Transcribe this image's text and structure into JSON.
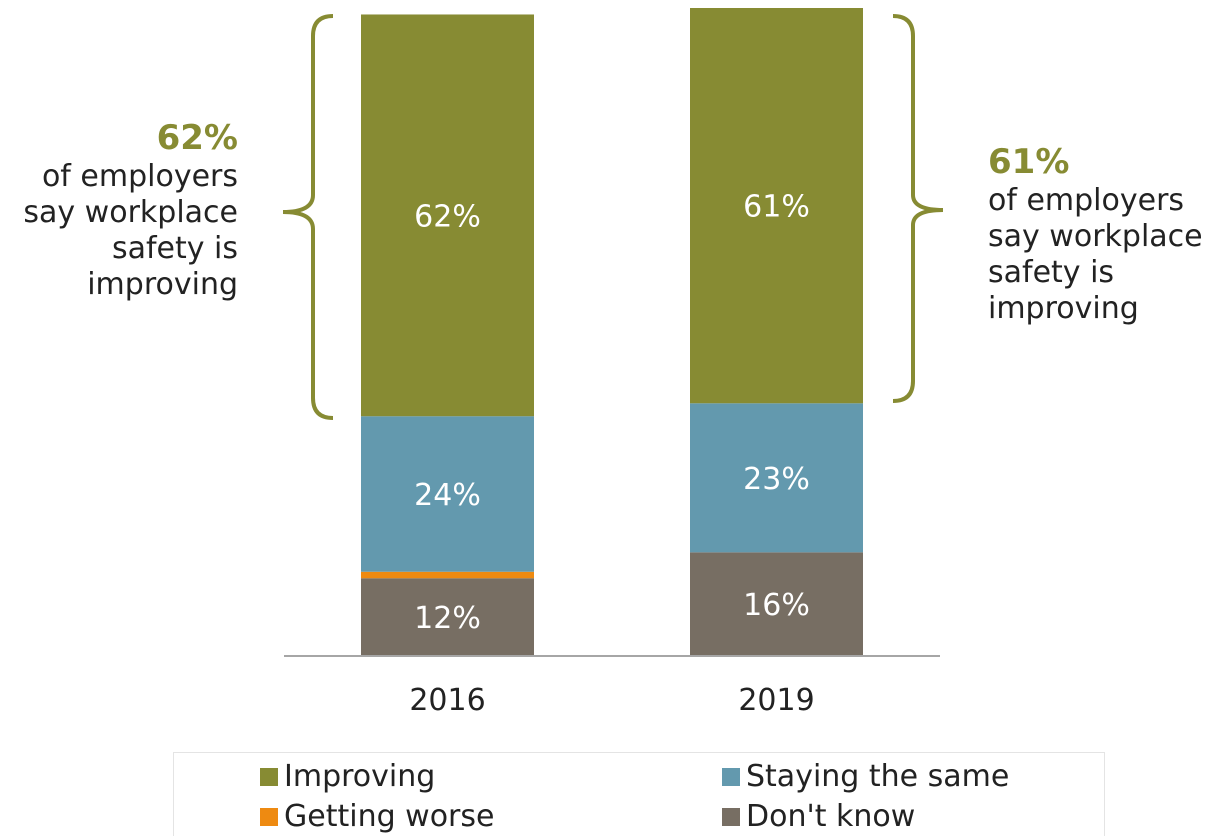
{
  "chart_data": {
    "type": "bar",
    "stacked": true,
    "categories": [
      "2016",
      "2019"
    ],
    "series": [
      {
        "name": "Improving",
        "values": [
          62,
          61
        ],
        "labels": [
          "62%",
          "61%"
        ],
        "color": "#878b33"
      },
      {
        "name": "Staying the same",
        "values": [
          24,
          23
        ],
        "labels": [
          "24%",
          "23%"
        ],
        "color": "#6399ae"
      },
      {
        "name": "Getting worse",
        "values": [
          1,
          0
        ],
        "labels": [
          "",
          ""
        ],
        "color": "#ee8a11"
      },
      {
        "name": "Don't know",
        "values": [
          12,
          16
        ],
        "labels": [
          "12%",
          "16%"
        ],
        "color": "#776e63"
      }
    ],
    "ylim": [
      0,
      100
    ],
    "grid": false,
    "legend_position": "bottom"
  },
  "callouts": {
    "left": {
      "pct": "62%",
      "lines": [
        "of employers",
        "say workplace",
        "safety is",
        "improving"
      ]
    },
    "right": {
      "pct": "61%",
      "lines": [
        "of employers",
        "say workplace",
        "safety is",
        "improving"
      ]
    }
  },
  "colors": {
    "highlight": "#878b33",
    "text": "#222222",
    "axis": "#a6a6a6",
    "label_text": "#ffffff"
  }
}
